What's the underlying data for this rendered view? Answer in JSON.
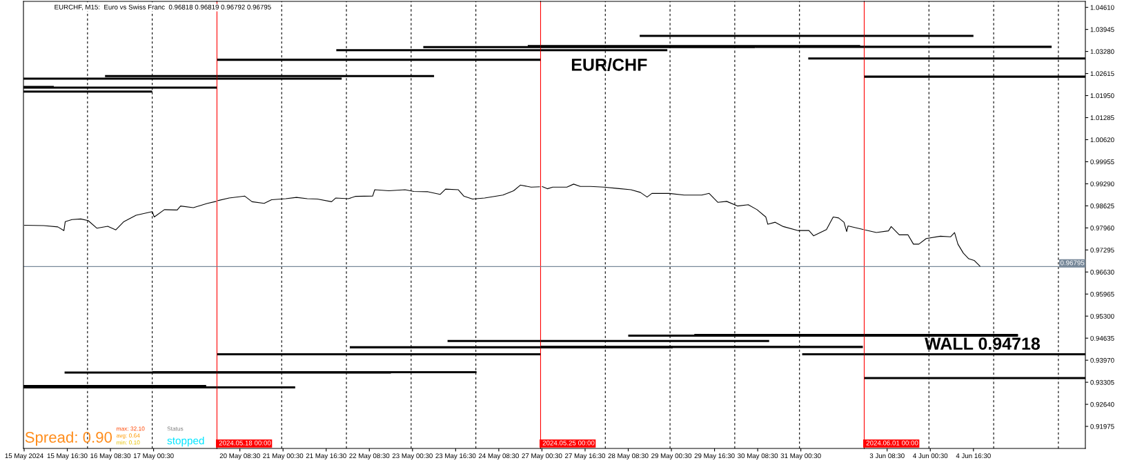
{
  "chart_data": [
    {
      "type": "line",
      "title": "EURCHF, M15:  Euro vs Swiss Franc  0.96818 0.96819 0.96792 0.96795",
      "tick_labels": "x",
      "xlim": [
        "2024-05-15T00:15",
        "2024-05-18T00:00"
      ],
      "ylim": [
        0.9131,
        1.0479
      ],
      "xticks": [
        {
          "value": "2024-05-15T00:30",
          "label": "15 May 2024"
        },
        {
          "value": "2024-05-15T16:30",
          "label": "15 May 16:30"
        },
        {
          "value": "2024-05-16T08:30",
          "label": "16 May 08:30"
        },
        {
          "value": "2024-05-17T00:30",
          "label": "17 May 00:30"
        }
      ],
      "series": [
        {
          "color": "#000000",
          "x": [
            "2024-05-15T00:30",
            "2024-05-15T07:45",
            "2024-05-15T13:00",
            "2024-05-15T15:15",
            "2024-05-15T15:45",
            "2024-05-15T18:15",
            "2024-05-15T21:30",
            "2024-05-16T00:15",
            "2024-05-16T03:30",
            "2024-05-16T07:30",
            "2024-05-16T10:30",
            "2024-05-16T13:30",
            "2024-05-16T18:00",
            "2024-05-17T00:00",
            "2024-05-17T00:45",
            "2024-05-17T04:30",
            "2024-05-17T09:15",
            "2024-05-17T10:30",
            "2024-05-17T15:15",
            "2024-05-17T20:30",
            "2024-05-17T23:45"
          ],
          "values": [
            0.9804,
            0.9803,
            0.9799,
            0.9788,
            0.9815,
            0.9821,
            0.9823,
            0.9818,
            0.9795,
            0.9801,
            0.979,
            0.9815,
            0.9834,
            0.9845,
            0.9829,
            0.9851,
            0.985,
            0.9862,
            0.9857,
            0.987,
            0.9876
          ]
        },
        {
          "color": "#000000",
          "x": [
            "2024-05-16T06:30",
            "2024-05-18T00:00"
          ],
          "values": [
            1.0254,
            1.0254
          ]
        },
        {
          "color": "#000000",
          "x": [
            "2024-05-15T00:15",
            "2024-05-18T00:00"
          ],
          "values": [
            1.0246,
            1.0246
          ]
        },
        {
          "color": "#000000",
          "x": [
            "2024-05-15T00:15",
            "2024-05-18T00:00"
          ],
          "values": [
            1.0219,
            1.0219
          ]
        },
        {
          "color": "#000000",
          "x": [
            "2024-05-15T00:15",
            "2024-05-15T11:30"
          ],
          "values": [
            1.0221,
            1.0221
          ]
        },
        {
          "color": "#000000",
          "x": [
            "2024-05-15T00:15",
            "2024-05-17T00:00"
          ],
          "values": [
            1.0207,
            1.0207
          ]
        },
        {
          "color": "#000000",
          "x": [
            "2024-05-15T15:30",
            "2024-05-18T00:00"
          ],
          "values": [
            0.936,
            0.936
          ]
        },
        {
          "color": "#000000",
          "x": [
            "2024-05-17T00:00",
            "2024-05-18T00:00"
          ],
          "values": [
            0.9361,
            0.9361
          ]
        },
        {
          "color": "#000000",
          "x": [
            "2024-05-15T00:15",
            "2024-05-17T20:00"
          ],
          "values": [
            0.9319,
            0.9319
          ]
        },
        {
          "color": "#000000",
          "x": [
            "2024-05-15T00:15",
            "2024-05-18T00:00"
          ],
          "values": [
            0.9315,
            0.9315
          ]
        }
      ],
      "ref_lines": [
        {
          "axis": "x",
          "value": "2024-05-16T00:00",
          "color": "#000000",
          "line_style": "dashed"
        },
        {
          "axis": "x",
          "value": "2024-05-17T00:00",
          "color": "#000000",
          "line_style": "dashed"
        },
        {
          "axis": "x",
          "value": "2024-05-18T00:00",
          "label": "2024.05.18 00:00",
          "color": "#ff0000",
          "line_style": "solid"
        },
        {
          "axis": "y",
          "value": 0.96795,
          "color": "#778899",
          "line_style": "solid"
        }
      ],
      "annotations": [
        "Spread: 0.90",
        "max: 32.10",
        "avg: 0.64",
        "min: 0.10",
        "Status",
        "stopped"
      ]
    },
    {
      "type": "line",
      "tick_labels": "x",
      "xlim": [
        "2024-05-20T00:00",
        "2024-05-25T00:00"
      ],
      "ylim": [
        0.9131,
        1.0479
      ],
      "xticks": [
        {
          "value": "2024-05-20T08:30",
          "label": "20 May 08:30"
        },
        {
          "value": "2024-05-21T00:30",
          "label": "21 May 00:30"
        },
        {
          "value": "2024-05-21T16:30",
          "label": "21 May 16:30"
        },
        {
          "value": "2024-05-22T08:30",
          "label": "22 May 08:30"
        },
        {
          "value": "2024-05-23T00:30",
          "label": "23 May 00:30"
        },
        {
          "value": "2024-05-23T16:30",
          "label": "23 May 16:30"
        },
        {
          "value": "2024-05-24T08:30",
          "label": "24 May 08:30"
        }
      ],
      "series": [
        {
          "color": "#000000",
          "x": [
            "2024-05-20T00:15",
            "2024-05-20T04:30",
            "2024-05-20T10:15",
            "2024-05-20T13:00",
            "2024-05-20T17:30",
            "2024-05-20T20:15",
            "2024-05-21T01:30",
            "2024-05-21T05:30",
            "2024-05-21T09:30",
            "2024-05-21T13:15",
            "2024-05-21T18:30",
            "2024-05-21T20:00",
            "2024-05-22T00:45",
            "2024-05-22T03:15",
            "2024-05-22T09:45",
            "2024-05-22T10:30",
            "2024-05-22T15:45",
            "2024-05-22T21:45",
            "2024-05-23T01:00",
            "2024-05-23T06:15",
            "2024-05-23T10:45",
            "2024-05-23T12:45",
            "2024-05-23T17:30",
            "2024-05-23T19:30",
            "2024-05-23T22:45",
            "2024-05-24T03:15",
            "2024-05-24T10:00",
            "2024-05-24T14:00",
            "2024-05-24T16:30",
            "2024-05-24T20:30",
            "2024-05-24T23:45"
          ],
          "values": [
            0.9878,
            0.9886,
            0.9892,
            0.9875,
            0.987,
            0.9881,
            0.9884,
            0.9888,
            0.9884,
            0.9883,
            0.9875,
            0.9886,
            0.9884,
            0.9891,
            0.9892,
            0.9911,
            0.9908,
            0.9911,
            0.9906,
            0.9905,
            0.9897,
            0.9913,
            0.9911,
            0.9892,
            0.9883,
            0.9886,
            0.9895,
            0.9908,
            0.9925,
            0.9919,
            0.992
          ]
        },
        {
          "color": "#000000",
          "x": [
            "2024-05-23T04:30",
            "2024-05-25T00:00"
          ],
          "values": [
            1.0341,
            1.0341
          ]
        },
        {
          "color": "#000000",
          "x": [
            "2024-05-24T19:15",
            "2024-05-25T00:00"
          ],
          "values": [
            1.0344,
            1.0344
          ]
        },
        {
          "color": "#000000",
          "x": [
            "2024-05-21T20:15",
            "2024-05-25T00:00"
          ],
          "values": [
            1.0332,
            1.0332
          ]
        },
        {
          "color": "#000000",
          "x": [
            "2024-05-20T00:00",
            "2024-05-25T00:00"
          ],
          "values": [
            1.0303,
            1.0303
          ]
        },
        {
          "color": "#000000",
          "x": [
            "2024-05-20T00:00",
            "2024-05-23T08:30"
          ],
          "values": [
            1.0254,
            1.0254
          ]
        },
        {
          "color": "#000000",
          "x": [
            "2024-05-20T00:00",
            "2024-05-21T22:15"
          ],
          "values": [
            1.0246,
            1.0246
          ]
        },
        {
          "color": "#000000",
          "x": [
            "2024-05-23T13:30",
            "2024-05-25T00:00"
          ],
          "values": [
            0.9455,
            0.9455
          ]
        },
        {
          "color": "#000000",
          "x": [
            "2024-05-22T01:15",
            "2024-05-25T00:00"
          ],
          "values": [
            0.9436,
            0.9436
          ]
        },
        {
          "color": "#000000",
          "x": [
            "2024-05-20T00:00",
            "2024-05-25T00:00"
          ],
          "values": [
            0.9415,
            0.9415
          ]
        },
        {
          "color": "#000000",
          "x": [
            "2024-05-20T00:00",
            "2024-05-22T16:30"
          ],
          "values": [
            0.936,
            0.936
          ]
        },
        {
          "color": "#000000",
          "x": [
            "2024-05-20T00:00",
            "2024-05-24T00:15"
          ],
          "values": [
            0.9361,
            0.9361
          ]
        },
        {
          "color": "#000000",
          "x": [
            "2024-05-20T00:00",
            "2024-05-21T05:00"
          ],
          "values": [
            0.9315,
            0.9315
          ]
        }
      ],
      "ref_lines": [
        {
          "axis": "x",
          "value": "2024-05-21T00:00",
          "color": "#000000",
          "line_style": "dashed"
        },
        {
          "axis": "x",
          "value": "2024-05-22T00:00",
          "color": "#000000",
          "line_style": "dashed"
        },
        {
          "axis": "x",
          "value": "2024-05-23T00:00",
          "color": "#000000",
          "line_style": "dashed"
        },
        {
          "axis": "x",
          "value": "2024-05-24T00:00",
          "color": "#000000",
          "line_style": "dashed"
        },
        {
          "axis": "x",
          "value": "2024-05-25T00:00",
          "label": "2024.05.25 00:00",
          "color": "#ff0000",
          "line_style": "solid"
        },
        {
          "axis": "y",
          "value": 0.96795,
          "color": "#778899",
          "line_style": "solid"
        }
      ]
    },
    {
      "type": "line",
      "tick_labels": "x",
      "xlim": [
        "2024-05-27T00:00",
        "2024-06-01T00:00"
      ],
      "ylim": [
        0.9131,
        1.0479
      ],
      "xticks": [
        {
          "value": "2024-05-27T00:30",
          "label": "27 May 00:30"
        },
        {
          "value": "2024-05-27T16:30",
          "label": "27 May 16:30"
        },
        {
          "value": "2024-05-28T08:30",
          "label": "28 May 08:30"
        },
        {
          "value": "2024-05-29T00:30",
          "label": "29 May 00:30"
        },
        {
          "value": "2024-05-29T16:30",
          "label": "29 May 16:30"
        },
        {
          "value": "2024-05-30T08:30",
          "label": "30 May 08:30"
        },
        {
          "value": "2024-05-31T00:30",
          "label": "31 May 00:30"
        }
      ],
      "series": [
        {
          "color": "#000000",
          "x": [
            "2024-05-27T00:30",
            "2024-05-27T02:30",
            "2024-05-27T04:30",
            "2024-05-27T09:45",
            "2024-05-27T12:15",
            "2024-05-27T14:45",
            "2024-05-27T18:30",
            "2024-05-27T23:30",
            "2024-05-28T04:30",
            "2024-05-28T09:30",
            "2024-05-28T13:00",
            "2024-05-28T15:30",
            "2024-05-28T17:15",
            "2024-05-28T23:45",
            "2024-05-29T05:15",
            "2024-05-29T11:45",
            "2024-05-29T14:30",
            "2024-05-29T17:45",
            "2024-05-29T21:00",
            "2024-05-30T01:00",
            "2024-05-30T05:00",
            "2024-05-30T08:15",
            "2024-05-30T11:30",
            "2024-05-30T12:15",
            "2024-05-30T15:00",
            "2024-05-30T18:00",
            "2024-05-30T23:30",
            "2024-05-31T03:30",
            "2024-05-31T05:15",
            "2024-05-31T10:00",
            "2024-05-31T12:30",
            "2024-05-31T14:30",
            "2024-05-31T16:30",
            "2024-05-31T17:30",
            "2024-05-31T18:00",
            "2024-05-31T23:45"
          ],
          "values": [
            0.9921,
            0.9914,
            0.9919,
            0.9919,
            0.9928,
            0.9921,
            0.9921,
            0.9919,
            0.9915,
            0.9911,
            0.9903,
            0.9889,
            0.99,
            0.99,
            0.9895,
            0.9895,
            0.99,
            0.9873,
            0.9876,
            0.9862,
            0.9866,
            0.9851,
            0.9829,
            0.9807,
            0.9813,
            0.98,
            0.9788,
            0.9788,
            0.9772,
            0.9791,
            0.9829,
            0.9826,
            0.9813,
            0.9785,
            0.9802,
            0.9791
          ]
        },
        {
          "color": "#000000",
          "x": [
            "2024-05-28T12:45",
            "2024-06-01T00:00"
          ],
          "values": [
            1.0375,
            1.0375
          ]
        },
        {
          "color": "#000000",
          "x": [
            "2024-05-27T00:00",
            "2024-05-30T07:30"
          ],
          "values": [
            1.0341,
            1.0341
          ]
        },
        {
          "color": "#000000",
          "x": [
            "2024-05-27T00:00",
            "2024-05-31T22:30"
          ],
          "values": [
            1.0344,
            1.0344
          ]
        },
        {
          "color": "#000000",
          "x": [
            "2024-05-30T07:30",
            "2024-06-01T00:00"
          ],
          "values": [
            1.0342,
            1.0342
          ]
        },
        {
          "color": "#000000",
          "x": [
            "2024-05-27T00:00",
            "2024-05-28T23:00"
          ],
          "values": [
            1.0332,
            1.0332
          ]
        },
        {
          "color": "#000000",
          "x": [
            "2024-05-31T03:15",
            "2024-06-01T00:00"
          ],
          "values": [
            1.0307,
            1.0307
          ]
        },
        {
          "color": "#000000",
          "x": [
            "2024-05-28T08:30",
            "2024-06-01T00:00"
          ],
          "values": [
            0.9471,
            0.9471
          ]
        },
        {
          "color": "#000000",
          "x": [
            "2024-05-29T09:00",
            "2024-06-01T00:00"
          ],
          "values": [
            0.9473,
            0.9473
          ]
        },
        {
          "color": "#000000",
          "x": [
            "2024-05-27T00:00",
            "2024-05-30T12:45"
          ],
          "values": [
            0.9455,
            0.9455
          ]
        },
        {
          "color": "#000000",
          "x": [
            "2024-05-27T00:00",
            "2024-05-29T01:00"
          ],
          "values": [
            0.9436,
            0.9436
          ]
        },
        {
          "color": "#000000",
          "x": [
            "2024-05-27T00:00",
            "2024-05-31T23:30"
          ],
          "values": [
            0.9437,
            0.9437
          ]
        },
        {
          "color": "#000000",
          "x": [
            "2024-05-31T01:00",
            "2024-06-01T00:00"
          ],
          "values": [
            0.9415,
            0.9415
          ]
        }
      ],
      "ref_lines": [
        {
          "axis": "x",
          "value": "2024-05-28T00:00",
          "color": "#000000",
          "line_style": "dashed"
        },
        {
          "axis": "x",
          "value": "2024-05-29T00:00",
          "color": "#000000",
          "line_style": "dashed"
        },
        {
          "axis": "x",
          "value": "2024-05-30T00:00",
          "color": "#000000",
          "line_style": "dashed"
        },
        {
          "axis": "x",
          "value": "2024-05-31T00:00",
          "color": "#000000",
          "line_style": "dashed"
        },
        {
          "axis": "x",
          "value": "2024-06-01T00:00",
          "label": "2024.06.01 00:00",
          "color": "#ff0000",
          "line_style": "solid"
        },
        {
          "axis": "y",
          "value": 0.96795,
          "color": "#778899",
          "line_style": "solid"
        }
      ],
      "annotations": [
        "EUR/CHF"
      ]
    },
    {
      "type": "line",
      "xlim": [
        "2024-06-03T00:00",
        "2024-06-06T10:00"
      ],
      "ylim": [
        0.9131,
        1.0479
      ],
      "xticks": [
        {
          "value": "2024-06-03T08:30",
          "label": "3 Jun 08:30"
        },
        {
          "value": "2024-06-04T00:30",
          "label": "4 Jun 00:30"
        },
        {
          "value": "2024-06-04T16:30",
          "label": "4 Jun 16:30"
        }
      ],
      "yticks": [
        {
          "value": 1.0461,
          "label": "1.04610"
        },
        {
          "value": 1.03945,
          "label": "1.03945"
        },
        {
          "value": 1.0328,
          "label": "1.03280"
        },
        {
          "value": 1.02615,
          "label": "1.02615"
        },
        {
          "value": 1.0195,
          "label": "1.01950"
        },
        {
          "value": 1.01285,
          "label": "1.01285"
        },
        {
          "value": 1.0062,
          "label": "1.00620"
        },
        {
          "value": 0.99955,
          "label": "0.99955"
        },
        {
          "value": 0.9929,
          "label": "0.99290"
        },
        {
          "value": 0.98625,
          "label": "0.98625"
        },
        {
          "value": 0.9796,
          "label": "0.97960"
        },
        {
          "value": 0.97295,
          "label": "0.97295"
        },
        {
          "value": 0.9663,
          "label": "0.96630"
        },
        {
          "value": 0.95965,
          "label": "0.95965"
        },
        {
          "value": 0.953,
          "label": "0.95300"
        },
        {
          "value": 0.94635,
          "label": "0.94635"
        },
        {
          "value": 0.9397,
          "label": "0.93970"
        },
        {
          "value": 0.93305,
          "label": "0.93305"
        },
        {
          "value": 0.9264,
          "label": "0.92640"
        },
        {
          "value": 0.91975,
          "label": "0.91975"
        }
      ],
      "series": [
        {
          "color": "#000000",
          "x": [
            "2024-06-03T00:15",
            "2024-06-03T04:30",
            "2024-06-03T09:00",
            "2024-06-03T10:00",
            "2024-06-03T13:00",
            "2024-06-03T16:15",
            "2024-06-03T18:15",
            "2024-06-03T20:15",
            "2024-06-03T23:00",
            "2024-06-04T04:15",
            "2024-06-04T08:00",
            "2024-06-04T09:30",
            "2024-06-04T10:45",
            "2024-06-04T12:45",
            "2024-06-04T14:45",
            "2024-06-04T16:45",
            "2024-06-04T19:00"
          ],
          "values": [
            0.979,
            0.9782,
            0.9787,
            0.98,
            0.9775,
            0.9775,
            0.9747,
            0.9747,
            0.9764,
            0.9771,
            0.9769,
            0.9782,
            0.9747,
            0.972,
            0.9703,
            0.9698,
            0.968
          ]
        },
        {
          "color": "#000000",
          "x": [
            "2024-06-03T00:00",
            "2024-06-04T16:30"
          ],
          "values": [
            1.0375,
            1.0375
          ]
        },
        {
          "color": "#000000",
          "x": [
            "2024-06-03T00:00",
            "2024-06-05T21:30"
          ],
          "values": [
            1.0342,
            1.0342
          ]
        },
        {
          "color": "#000000",
          "x": [
            "2024-06-03T00:00",
            "2024-06-06T10:00"
          ],
          "values": [
            1.0307,
            1.0307
          ]
        },
        {
          "color": "#000000",
          "x": [
            "2024-06-03T00:00",
            "2024-06-06T10:00"
          ],
          "values": [
            1.0252,
            1.0252
          ]
        },
        {
          "color": "#000000",
          "x": [
            "2024-06-03T00:00",
            "2024-06-05T09:00"
          ],
          "values": [
            0.9471,
            0.9471
          ]
        },
        {
          "color": "#000000",
          "x": [
            "2024-06-03T00:00",
            "2024-06-05T09:00"
          ],
          "values": [
            0.9473,
            0.9473
          ]
        },
        {
          "color": "#000000",
          "x": [
            "2024-06-03T00:00",
            "2024-06-06T10:00"
          ],
          "values": [
            0.9415,
            0.9415
          ]
        },
        {
          "color": "#000000",
          "x": [
            "2024-06-03T00:00",
            "2024-06-06T10:00"
          ],
          "values": [
            0.9343,
            0.9343
          ]
        }
      ],
      "ref_lines": [
        {
          "axis": "x",
          "value": "2024-06-04T00:00",
          "color": "#000000",
          "line_style": "dashed"
        },
        {
          "axis": "x",
          "value": "2024-06-05T00:00",
          "color": "#000000",
          "line_style": "dashed"
        },
        {
          "axis": "x",
          "value": "2024-06-06T00:00",
          "color": "#000000",
          "line_style": "dashed"
        },
        {
          "axis": "y",
          "value": 0.96795,
          "label": "0.96795",
          "color": "#778899",
          "line_style": "solid"
        }
      ],
      "annotations": [
        "WALL 0.94718"
      ]
    }
  ]
}
